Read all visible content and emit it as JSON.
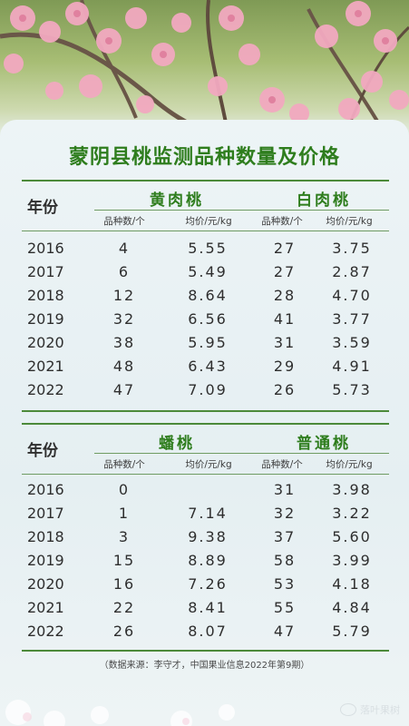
{
  "title": "蒙阴县桃监测品种数量及价格",
  "year_label": "年份",
  "col_labels": {
    "count": "品种数/个",
    "price": "均价/元/kg"
  },
  "table1": {
    "group_a": "黄肉桃",
    "group_b": "白肉桃",
    "rows": [
      {
        "year": "2016",
        "a_count": "4",
        "a_price": "5.55",
        "b_count": "27",
        "b_price": "3.75"
      },
      {
        "year": "2017",
        "a_count": "6",
        "a_price": "5.49",
        "b_count": "27",
        "b_price": "2.87"
      },
      {
        "year": "2018",
        "a_count": "12",
        "a_price": "8.64",
        "b_count": "28",
        "b_price": "4.70"
      },
      {
        "year": "2019",
        "a_count": "32",
        "a_price": "6.56",
        "b_count": "41",
        "b_price": "3.77"
      },
      {
        "year": "2020",
        "a_count": "38",
        "a_price": "5.95",
        "b_count": "31",
        "b_price": "3.59"
      },
      {
        "year": "2021",
        "a_count": "48",
        "a_price": "6.43",
        "b_count": "29",
        "b_price": "4.91"
      },
      {
        "year": "2022",
        "a_count": "47",
        "a_price": "7.09",
        "b_count": "26",
        "b_price": "5.73"
      }
    ]
  },
  "table2": {
    "group_a": "蟠桃",
    "group_b": "普通桃",
    "rows": [
      {
        "year": "2016",
        "a_count": "0",
        "a_price": "",
        "b_count": "31",
        "b_price": "3.98"
      },
      {
        "year": "2017",
        "a_count": "1",
        "a_price": "7.14",
        "b_count": "32",
        "b_price": "3.22"
      },
      {
        "year": "2018",
        "a_count": "3",
        "a_price": "9.38",
        "b_count": "37",
        "b_price": "5.60"
      },
      {
        "year": "2019",
        "a_count": "15",
        "a_price": "8.89",
        "b_count": "58",
        "b_price": "3.99"
      },
      {
        "year": "2020",
        "a_count": "16",
        "a_price": "7.26",
        "b_count": "53",
        "b_price": "4.18"
      },
      {
        "year": "2021",
        "a_count": "22",
        "a_price": "8.41",
        "b_count": "55",
        "b_price": "4.84"
      },
      {
        "year": "2022",
        "a_count": "26",
        "a_price": "8.07",
        "b_count": "47",
        "b_price": "5.79"
      }
    ]
  },
  "source": "（数据来源：李守才，中国果业信息2022年第9期）",
  "watermark": "落叶果树"
}
